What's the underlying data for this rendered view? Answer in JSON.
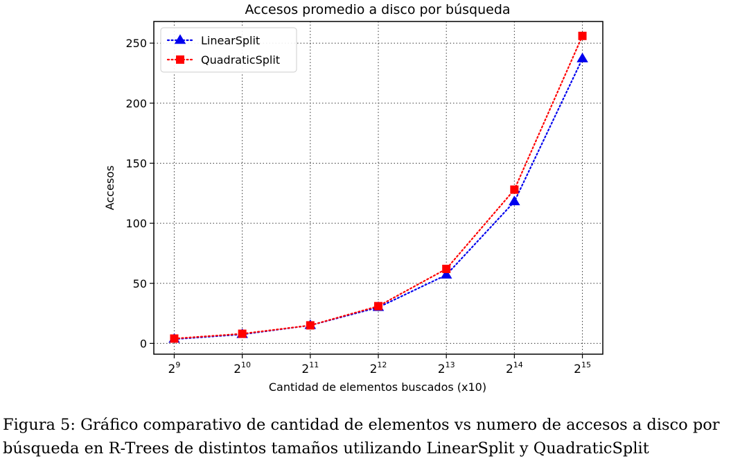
{
  "chart_data": {
    "type": "line",
    "title": "Accesos promedio a disco por búsqueda",
    "xlabel": "Cantidad de elementos buscados (x10)",
    "ylabel": "Accesos",
    "x_tick_base": "2",
    "x": [
      9,
      10,
      11,
      12,
      13,
      14,
      15
    ],
    "x_tick_exponents": [
      "9",
      "10",
      "11",
      "12",
      "13",
      "14",
      "15"
    ],
    "y_ticks": [
      0,
      50,
      100,
      150,
      200,
      250
    ],
    "ylim": [
      -9,
      268
    ],
    "grid": true,
    "legend_position": "top-left",
    "series": [
      {
        "name": "LinearSplit",
        "color": "#0000ee",
        "marker": "triangle",
        "values": [
          3.5,
          7.5,
          15,
          30,
          57,
          118,
          237
        ]
      },
      {
        "name": "QuadraticSplit",
        "color": "#ff0000",
        "marker": "square",
        "values": [
          4,
          8,
          15,
          31,
          62,
          128,
          256
        ]
      }
    ]
  },
  "caption": {
    "line1": "Figura 5: Gráfico comparativo de cantidad de elementos vs numero de accesos a disco por",
    "line2": "búsqueda en R-Trees de distintos tamaños utilizando LinearSplit y QuadraticSplit"
  }
}
